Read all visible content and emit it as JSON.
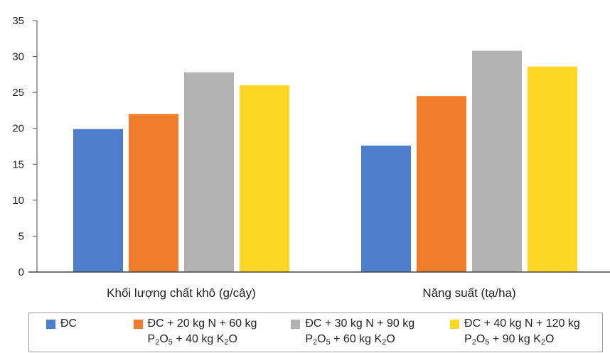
{
  "chart_data": {
    "type": "bar",
    "categories": [
      "Khối lượng chất khô (g/cây)",
      "Năng suất (tạ/ha)"
    ],
    "series": [
      {
        "name": "ĐC",
        "color": "#4e7ecb",
        "values": [
          19.9,
          17.6
        ]
      },
      {
        "name": "ĐC + 20 kg N + 60 kg P2O5 + 40 kg K2O",
        "color": "#f07d2c",
        "values": [
          22.0,
          24.5
        ]
      },
      {
        "name": "ĐC + 30 kg N + 90 kg P2O5 + 60 kg K2O",
        "color": "#b3b3b3",
        "values": [
          27.8,
          30.8
        ]
      },
      {
        "name": "ĐC + 40 kg N + 120 kg P2O5 + 90 kg K2O",
        "color": "#fcd825",
        "values": [
          26.0,
          28.6
        ]
      }
    ],
    "ylim": [
      0,
      35
    ],
    "yticks": [
      0,
      5,
      10,
      15,
      20,
      25,
      30,
      35
    ],
    "grid": false,
    "legend_position": "bottom"
  },
  "legend": {
    "items": [
      {
        "line1": "ĐC",
        "line2_parts": []
      },
      {
        "line1": "ĐC + 20 kg N + 60 kg",
        "line2_parts": [
          "P",
          "2",
          "O",
          "5",
          " + 40 kg K",
          "2",
          "O"
        ]
      },
      {
        "line1": "ĐC +  30 kg N + 90 kg",
        "line2_parts": [
          "P",
          "2",
          "O",
          "5",
          " + 60 kg K",
          "2",
          "O"
        ]
      },
      {
        "line1": "ĐC + 40 kg N + 120 kg",
        "line2_parts": [
          "P",
          "2",
          "O",
          "5",
          " + 90 kg K",
          "2",
          "O"
        ]
      }
    ]
  }
}
